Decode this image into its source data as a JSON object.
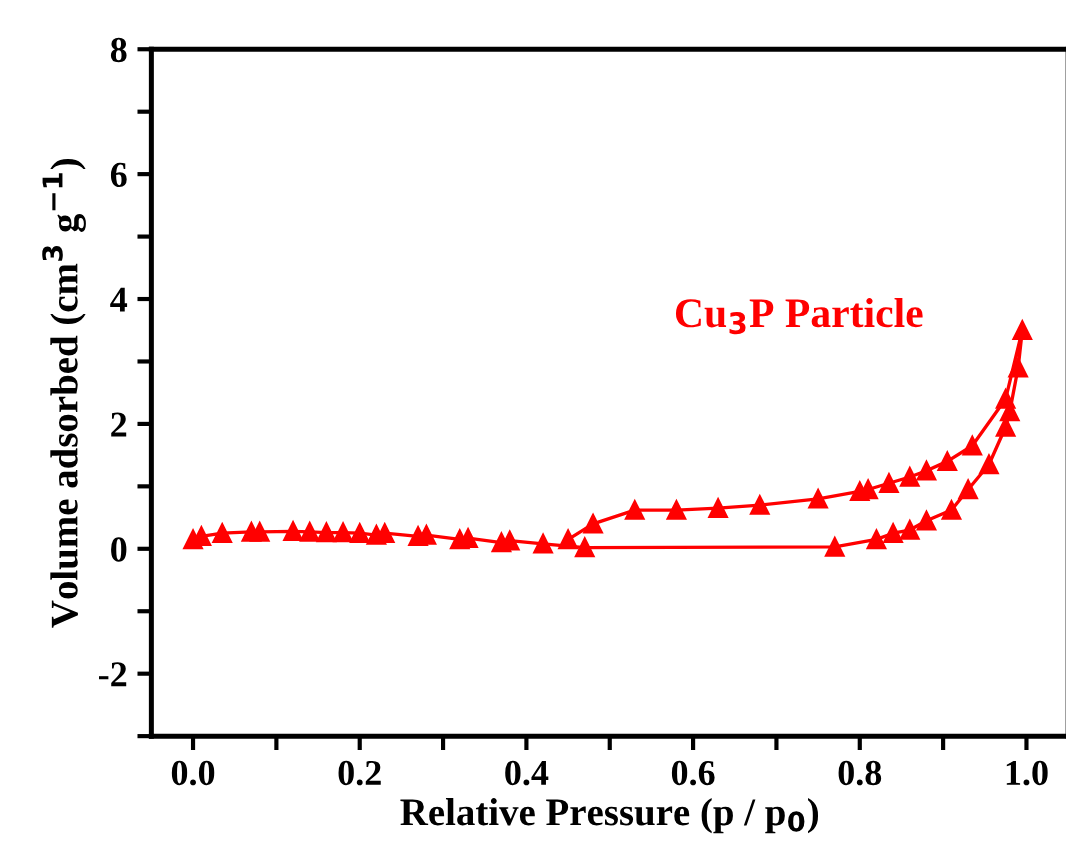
{
  "chart_data": {
    "type": "line",
    "xlabel": "Relative Pressure (p / p$_{0}$)",
    "ylabel": "Volume adsorbed (cm$^{3}$ g$^{−1}$)",
    "annotations": [
      "Cu$_{3}$P Particle"
    ],
    "marker": "triangle",
    "line_style": "solid",
    "grid": false,
    "legend": false,
    "xlim": [
      -0.05,
      1.05
    ],
    "ylim": [
      -3,
      8
    ],
    "xticks": [
      {
        "value": 0,
        "label": "0.0"
      },
      {
        "value": 0.1,
        "label": null
      },
      0.2,
      {
        "value": 0.3,
        "label": null
      },
      0.4,
      {
        "value": 0.5,
        "label": null
      },
      0.6,
      {
        "value": 0.7,
        "label": null
      },
      0.8,
      {
        "value": 0.9,
        "label": null
      },
      {
        "value": 1,
        "label": "1.0"
      }
    ],
    "yticks": [
      {
        "value": -3,
        "label": null
      },
      -2,
      {
        "value": -1,
        "label": null
      },
      0,
      {
        "value": 1,
        "label": null
      },
      2,
      {
        "value": 3,
        "label": null
      },
      4,
      {
        "value": 5,
        "label": null
      },
      6,
      {
        "value": 7,
        "label": null
      },
      8
    ],
    "series": [
      {
        "color": "#ff0000",
        "x": [
          0.0,
          0.01,
          0.035,
          0.07,
          0.08,
          0.12,
          0.14,
          0.16,
          0.18,
          0.2,
          0.22,
          0.23,
          0.27,
          0.28,
          0.32,
          0.33,
          0.37,
          0.38,
          0.42,
          0.47,
          0.77,
          0.82,
          0.84,
          0.86,
          0.88,
          0.91,
          0.93,
          0.955,
          0.975,
          0.98,
          0.99,
          0.995,
          0.975,
          0.935,
          0.905,
          0.88,
          0.86,
          0.835,
          0.81,
          0.8,
          0.75,
          0.68,
          0.63,
          0.58,
          0.53,
          0.48,
          0.45
        ],
        "values": [
          0.15,
          0.2,
          0.25,
          0.27,
          0.27,
          0.28,
          0.27,
          0.26,
          0.26,
          0.25,
          0.22,
          0.25,
          0.2,
          0.22,
          0.15,
          0.17,
          0.1,
          0.13,
          0.08,
          0.02,
          0.03,
          0.15,
          0.25,
          0.3,
          0.45,
          0.62,
          0.95,
          1.35,
          1.95,
          2.2,
          2.9,
          3.5,
          2.4,
          1.65,
          1.4,
          1.25,
          1.15,
          1.05,
          0.95,
          0.92,
          0.8,
          0.7,
          0.65,
          0.62,
          0.62,
          0.4,
          0.15
        ]
      }
    ]
  }
}
